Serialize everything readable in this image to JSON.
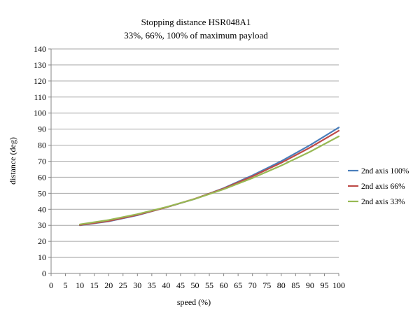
{
  "chart_data": {
    "type": "line",
    "title": "Stopping distance HSR048A1",
    "subtitle": "33%, 66%, 100% of maximum payload",
    "xlabel": "speed (%)",
    "ylabel": "distance (deg)",
    "xlim": [
      0,
      100
    ],
    "ylim": [
      0,
      140
    ],
    "x_ticks": [
      0,
      5,
      10,
      15,
      20,
      25,
      30,
      35,
      40,
      45,
      50,
      55,
      60,
      65,
      70,
      75,
      80,
      85,
      90,
      95,
      100
    ],
    "y_ticks": [
      0,
      10,
      20,
      30,
      40,
      50,
      60,
      70,
      80,
      90,
      100,
      110,
      120,
      130,
      140
    ],
    "grid": "horizontal",
    "legend_position": "right",
    "x": [
      10,
      20,
      30,
      40,
      50,
      60,
      70,
      80,
      90,
      100
    ],
    "series": [
      {
        "name": "2nd axis 100%",
        "color": "#4a7ebb",
        "values": [
          30.0,
          32.5,
          36.3,
          41.2,
          46.5,
          53.2,
          61.2,
          70.0,
          80.0,
          91.0
        ]
      },
      {
        "name": "2nd axis 66%",
        "color": "#be4b48",
        "values": [
          30.2,
          32.7,
          36.5,
          41.2,
          46.6,
          53.0,
          60.6,
          69.0,
          78.5,
          89.0
        ]
      },
      {
        "name": "2nd axis 33%",
        "color": "#98b954",
        "values": [
          30.6,
          33.3,
          37.0,
          41.4,
          46.5,
          52.5,
          59.5,
          67.3,
          75.9,
          85.5
        ]
      }
    ]
  }
}
